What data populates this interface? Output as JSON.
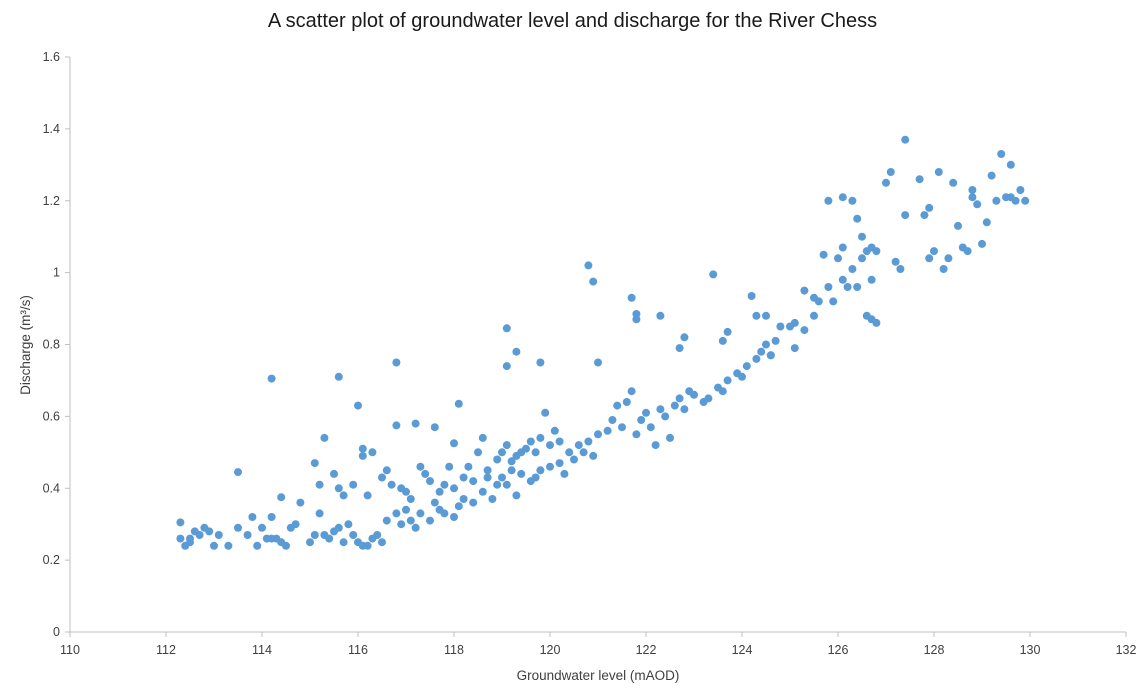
{
  "chart_data": {
    "type": "scatter",
    "title": "A scatter plot of groundwater level and discharge for the River Chess",
    "xlabel": "Groundwater level (mAOD)",
    "ylabel": "Discharge (m³/s)",
    "xlim": [
      110,
      132
    ],
    "ylim": [
      0,
      1.6
    ],
    "xticks": [
      110,
      112,
      114,
      116,
      118,
      120,
      122,
      124,
      126,
      128,
      130,
      132
    ],
    "yticks": [
      0,
      0.2,
      0.4,
      0.6,
      0.8,
      1,
      1.2,
      1.4,
      1.6
    ],
    "ytick_labels": [
      "0",
      "0.2",
      "0.4",
      "0.6",
      "0.8",
      "1",
      "1.2",
      "1.4",
      "1.6"
    ],
    "grid": false,
    "legend": null,
    "marker_color": "#5B9BD5",
    "series": [
      {
        "name": "Discharge vs groundwater level",
        "points": [
          [
            112.3,
            0.305
          ],
          [
            112.3,
            0.26
          ],
          [
            112.4,
            0.24
          ],
          [
            112.5,
            0.26
          ],
          [
            112.5,
            0.25
          ],
          [
            112.6,
            0.28
          ],
          [
            112.7,
            0.27
          ],
          [
            112.8,
            0.29
          ],
          [
            112.9,
            0.28
          ],
          [
            113.0,
            0.24
          ],
          [
            113.1,
            0.27
          ],
          [
            113.3,
            0.24
          ],
          [
            113.5,
            0.29
          ],
          [
            113.7,
            0.27
          ],
          [
            113.9,
            0.24
          ],
          [
            114.0,
            0.29
          ],
          [
            114.1,
            0.26
          ],
          [
            114.2,
            0.26
          ],
          [
            114.3,
            0.26
          ],
          [
            114.4,
            0.25
          ],
          [
            114.5,
            0.24
          ],
          [
            114.6,
            0.29
          ],
          [
            114.7,
            0.3
          ],
          [
            114.8,
            0.36
          ],
          [
            115.0,
            0.25
          ],
          [
            115.1,
            0.27
          ],
          [
            115.2,
            0.33
          ],
          [
            115.3,
            0.27
          ],
          [
            115.4,
            0.26
          ],
          [
            115.5,
            0.28
          ],
          [
            115.6,
            0.29
          ],
          [
            115.7,
            0.25
          ],
          [
            115.8,
            0.3
          ],
          [
            115.9,
            0.27
          ],
          [
            116.0,
            0.25
          ],
          [
            116.1,
            0.24
          ],
          [
            116.2,
            0.24
          ],
          [
            116.3,
            0.26
          ],
          [
            116.4,
            0.27
          ],
          [
            116.5,
            0.25
          ],
          [
            113.5,
            0.445
          ],
          [
            114.2,
            0.705
          ],
          [
            114.4,
            0.375
          ],
          [
            113.8,
            0.32
          ],
          [
            114.2,
            0.32
          ],
          [
            115.1,
            0.47
          ],
          [
            115.2,
            0.41
          ],
          [
            115.3,
            0.54
          ],
          [
            115.5,
            0.44
          ],
          [
            115.6,
            0.4
          ],
          [
            115.6,
            0.71
          ],
          [
            115.7,
            0.38
          ],
          [
            115.9,
            0.41
          ],
          [
            116.0,
            0.63
          ],
          [
            116.1,
            0.49
          ],
          [
            116.1,
            0.51
          ],
          [
            116.2,
            0.38
          ],
          [
            116.3,
            0.5
          ],
          [
            116.5,
            0.43
          ],
          [
            116.6,
            0.45
          ],
          [
            116.7,
            0.41
          ],
          [
            116.8,
            0.75
          ],
          [
            116.8,
            0.575
          ],
          [
            116.9,
            0.4
          ],
          [
            117.0,
            0.39
          ],
          [
            117.1,
            0.37
          ],
          [
            117.2,
            0.58
          ],
          [
            117.3,
            0.46
          ],
          [
            117.4,
            0.44
          ],
          [
            117.5,
            0.42
          ],
          [
            117.6,
            0.57
          ],
          [
            117.7,
            0.39
          ],
          [
            117.8,
            0.41
          ],
          [
            117.9,
            0.46
          ],
          [
            118.0,
            0.4
          ],
          [
            118.0,
            0.525
          ],
          [
            118.1,
            0.635
          ],
          [
            118.2,
            0.43
          ],
          [
            118.3,
            0.46
          ],
          [
            118.4,
            0.42
          ],
          [
            118.5,
            0.5
          ],
          [
            118.6,
            0.54
          ],
          [
            118.7,
            0.45
          ],
          [
            116.6,
            0.31
          ],
          [
            116.8,
            0.33
          ],
          [
            116.9,
            0.3
          ],
          [
            117.0,
            0.34
          ],
          [
            117.1,
            0.31
          ],
          [
            117.2,
            0.29
          ],
          [
            117.3,
            0.33
          ],
          [
            117.5,
            0.31
          ],
          [
            117.6,
            0.36
          ],
          [
            117.7,
            0.34
          ],
          [
            117.8,
            0.33
          ],
          [
            118.0,
            0.32
          ],
          [
            118.1,
            0.35
          ],
          [
            118.2,
            0.37
          ],
          [
            118.4,
            0.36
          ],
          [
            118.6,
            0.39
          ],
          [
            118.7,
            0.43
          ],
          [
            118.8,
            0.37
          ],
          [
            118.9,
            0.41
          ],
          [
            119.0,
            0.43
          ],
          [
            119.1,
            0.41
          ],
          [
            119.2,
            0.45
          ],
          [
            119.3,
            0.38
          ],
          [
            119.4,
            0.44
          ],
          [
            119.6,
            0.42
          ],
          [
            119.7,
            0.43
          ],
          [
            119.8,
            0.45
          ],
          [
            120.0,
            0.46
          ],
          [
            120.2,
            0.47
          ],
          [
            120.3,
            0.44
          ],
          [
            120.5,
            0.48
          ],
          [
            120.7,
            0.5
          ],
          [
            120.9,
            0.49
          ],
          [
            118.9,
            0.48
          ],
          [
            119.0,
            0.5
          ],
          [
            119.1,
            0.52
          ],
          [
            119.2,
            0.475
          ],
          [
            119.3,
            0.49
          ],
          [
            119.4,
            0.5
          ],
          [
            119.5,
            0.51
          ],
          [
            119.6,
            0.53
          ],
          [
            119.7,
            0.5
          ],
          [
            119.8,
            0.54
          ],
          [
            119.9,
            0.61
          ],
          [
            120.0,
            0.52
          ],
          [
            120.1,
            0.56
          ],
          [
            120.2,
            0.53
          ],
          [
            120.4,
            0.5
          ],
          [
            120.6,
            0.52
          ],
          [
            120.8,
            0.53
          ],
          [
            121.0,
            0.55
          ],
          [
            121.2,
            0.56
          ],
          [
            121.3,
            0.59
          ],
          [
            121.4,
            0.63
          ],
          [
            121.5,
            0.57
          ],
          [
            121.6,
            0.64
          ],
          [
            121.7,
            0.67
          ],
          [
            121.8,
            0.55
          ],
          [
            121.9,
            0.59
          ],
          [
            122.0,
            0.61
          ],
          [
            122.1,
            0.57
          ],
          [
            122.2,
            0.52
          ],
          [
            122.3,
            0.62
          ],
          [
            122.4,
            0.6
          ],
          [
            122.5,
            0.54
          ],
          [
            122.6,
            0.63
          ],
          [
            122.7,
            0.65
          ],
          [
            122.8,
            0.62
          ],
          [
            122.9,
            0.67
          ],
          [
            123.0,
            0.66
          ],
          [
            123.2,
            0.64
          ],
          [
            123.3,
            0.65
          ],
          [
            123.5,
            0.68
          ],
          [
            123.6,
            0.67
          ],
          [
            123.7,
            0.7
          ],
          [
            123.9,
            0.72
          ],
          [
            124.0,
            0.71
          ],
          [
            124.1,
            0.74
          ],
          [
            124.3,
            0.76
          ],
          [
            124.4,
            0.78
          ],
          [
            124.5,
            0.8
          ],
          [
            124.6,
            0.77
          ],
          [
            124.7,
            0.81
          ],
          [
            119.1,
            0.845
          ],
          [
            119.1,
            0.74
          ],
          [
            119.3,
            0.78
          ],
          [
            119.8,
            0.75
          ],
          [
            120.8,
            1.02
          ],
          [
            120.9,
            0.975
          ],
          [
            121.0,
            0.75
          ],
          [
            121.7,
            0.93
          ],
          [
            121.8,
            0.87
          ],
          [
            121.8,
            0.885
          ],
          [
            122.3,
            0.88
          ],
          [
            122.8,
            0.82
          ],
          [
            122.7,
            0.79
          ],
          [
            123.4,
            0.995
          ],
          [
            123.6,
            0.81
          ],
          [
            123.7,
            0.835
          ],
          [
            124.2,
            0.935
          ],
          [
            124.3,
            0.88
          ],
          [
            124.5,
            0.88
          ],
          [
            124.6,
            0.77
          ],
          [
            124.8,
            0.85
          ],
          [
            125.0,
            0.85
          ],
          [
            125.1,
            0.86
          ],
          [
            125.1,
            0.79
          ],
          [
            125.3,
            0.84
          ],
          [
            125.3,
            0.95
          ],
          [
            125.5,
            0.93
          ],
          [
            125.5,
            0.88
          ],
          [
            125.6,
            0.92
          ],
          [
            125.7,
            1.05
          ],
          [
            125.8,
            0.96
          ],
          [
            125.9,
            0.92
          ],
          [
            126.0,
            1.04
          ],
          [
            126.1,
            0.98
          ],
          [
            126.1,
            1.07
          ],
          [
            126.2,
            0.96
          ],
          [
            126.3,
            1.01
          ],
          [
            126.4,
            0.96
          ],
          [
            126.5,
            1.04
          ],
          [
            126.6,
            0.88
          ],
          [
            126.7,
            0.98
          ],
          [
            126.7,
            0.87
          ],
          [
            126.8,
            0.86
          ],
          [
            126.8,
            1.06
          ],
          [
            126.7,
            1.07
          ],
          [
            125.8,
            1.2
          ],
          [
            126.1,
            1.21
          ],
          [
            126.3,
            1.2
          ],
          [
            126.4,
            1.15
          ],
          [
            126.5,
            1.1
          ],
          [
            126.6,
            1.06
          ],
          [
            127.0,
            1.25
          ],
          [
            127.1,
            1.28
          ],
          [
            127.2,
            1.03
          ],
          [
            127.3,
            1.01
          ],
          [
            127.4,
            1.16
          ],
          [
            127.4,
            1.37
          ],
          [
            127.7,
            1.26
          ],
          [
            127.8,
            1.16
          ],
          [
            127.9,
            1.18
          ],
          [
            127.9,
            1.04
          ],
          [
            128.0,
            1.06
          ],
          [
            128.1,
            1.28
          ],
          [
            128.2,
            1.01
          ],
          [
            128.3,
            1.04
          ],
          [
            128.4,
            1.25
          ],
          [
            128.5,
            1.13
          ],
          [
            128.6,
            1.07
          ],
          [
            128.7,
            1.06
          ],
          [
            128.8,
            1.23
          ],
          [
            128.8,
            1.21
          ],
          [
            128.9,
            1.19
          ],
          [
            129.0,
            1.08
          ],
          [
            129.1,
            1.14
          ],
          [
            129.2,
            1.27
          ],
          [
            129.3,
            1.2
          ],
          [
            129.4,
            1.33
          ],
          [
            129.5,
            1.21
          ],
          [
            129.6,
            1.3
          ],
          [
            129.7,
            1.2
          ],
          [
            129.8,
            1.23
          ],
          [
            129.9,
            1.2
          ],
          [
            129.6,
            1.21
          ]
        ]
      }
    ]
  }
}
